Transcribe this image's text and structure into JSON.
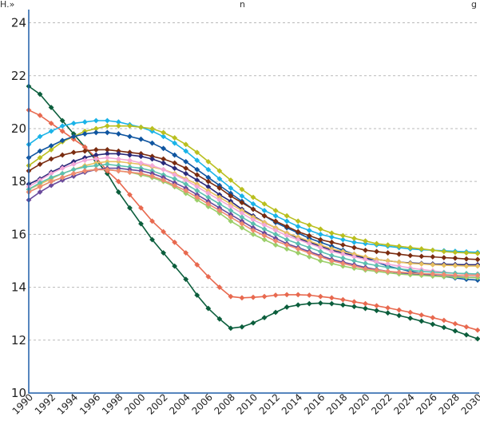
{
  "chart_data": {
    "type": "line",
    "title": "",
    "xlabel": "",
    "ylabel": "",
    "ylim": [
      10,
      24.5
    ],
    "yticks": [
      "10",
      "12",
      "14",
      "16",
      "18",
      "20",
      "22",
      "24"
    ],
    "x": [
      1990,
      1991,
      1992,
      1993,
      1994,
      1995,
      1996,
      1997,
      1998,
      1999,
      2000,
      2001,
      2002,
      2003,
      2004,
      2005,
      2006,
      2007,
      2008,
      2009,
      2010,
      2011,
      2012,
      2013,
      2014,
      2015,
      2016,
      2017,
      2018,
      2019,
      2020,
      2021,
      2022,
      2023,
      2024,
      2025,
      2026,
      2027,
      2028,
      2029,
      2030
    ],
    "xticks": [
      "1990",
      "1992",
      "1994",
      "1996",
      "1998",
      "2000",
      "2002",
      "2004",
      "2006",
      "2008",
      "2010",
      "2012",
      "2014",
      "2016",
      "2018",
      "2020",
      "2022",
      "2024",
      "2026",
      "2028",
      "2030"
    ],
    "grid": true,
    "series": [
      {
        "color": "#0b5e3c",
        "values": [
          21.6,
          21.3,
          20.8,
          20.3,
          19.8,
          19.3,
          18.8,
          18.3,
          17.6,
          17.0,
          16.4,
          15.8,
          15.3,
          14.8,
          14.3,
          13.7,
          13.2,
          12.8,
          12.45,
          12.5,
          12.65,
          12.85,
          13.05,
          13.25,
          13.33,
          13.38,
          13.4,
          13.38,
          13.33,
          13.27,
          13.2,
          13.12,
          13.03,
          12.93,
          12.83,
          12.72,
          12.6,
          12.48,
          12.35,
          12.2,
          12.05
        ]
      },
      {
        "color": "#e8694f",
        "values": [
          20.7,
          20.5,
          20.2,
          19.9,
          19.6,
          19.3,
          18.9,
          18.4,
          18.0,
          17.5,
          17.0,
          16.5,
          16.1,
          15.7,
          15.3,
          14.85,
          14.4,
          14.0,
          13.65,
          13.6,
          13.62,
          13.65,
          13.7,
          13.72,
          13.72,
          13.7,
          13.65,
          13.6,
          13.53,
          13.45,
          13.38,
          13.3,
          13.22,
          13.14,
          13.05,
          12.95,
          12.85,
          12.75,
          12.62,
          12.5,
          12.38
        ]
      },
      {
        "color": "#1ab3e8",
        "values": [
          19.4,
          19.7,
          19.9,
          20.1,
          20.2,
          20.25,
          20.3,
          20.3,
          20.25,
          20.15,
          20.05,
          19.9,
          19.7,
          19.45,
          19.15,
          18.8,
          18.45,
          18.1,
          17.75,
          17.45,
          17.15,
          16.9,
          16.7,
          16.5,
          16.3,
          16.15,
          16.0,
          15.9,
          15.8,
          15.7,
          15.65,
          15.6,
          15.55,
          15.5,
          15.45,
          15.42,
          15.4,
          15.38,
          15.36,
          15.34,
          15.32
        ]
      },
      {
        "color": "#b9bf1f",
        "values": [
          18.6,
          18.9,
          19.2,
          19.5,
          19.7,
          19.9,
          20.0,
          20.1,
          20.1,
          20.1,
          20.05,
          20.0,
          19.85,
          19.65,
          19.4,
          19.1,
          18.75,
          18.4,
          18.05,
          17.7,
          17.4,
          17.15,
          16.9,
          16.7,
          16.5,
          16.35,
          16.2,
          16.05,
          15.95,
          15.85,
          15.75,
          15.65,
          15.6,
          15.55,
          15.5,
          15.45,
          15.4,
          15.35,
          15.32,
          15.3,
          15.28
        ]
      },
      {
        "color": "#0f55a0",
        "values": [
          18.9,
          19.15,
          19.35,
          19.55,
          19.7,
          19.8,
          19.85,
          19.85,
          19.8,
          19.7,
          19.6,
          19.45,
          19.25,
          19.0,
          18.75,
          18.45,
          18.15,
          17.85,
          17.55,
          17.25,
          16.95,
          16.7,
          16.45,
          16.25,
          16.05,
          15.85,
          15.7,
          15.55,
          15.4,
          15.25,
          15.1,
          14.95,
          14.8,
          14.7,
          14.6,
          14.52,
          14.45,
          14.4,
          14.35,
          14.3,
          14.27
        ]
      },
      {
        "color": "#7a2c10",
        "values": [
          18.4,
          18.65,
          18.85,
          19.0,
          19.1,
          19.15,
          19.2,
          19.2,
          19.15,
          19.1,
          19.05,
          18.95,
          18.85,
          18.7,
          18.5,
          18.25,
          18.0,
          17.75,
          17.45,
          17.2,
          16.95,
          16.7,
          16.5,
          16.3,
          16.1,
          15.95,
          15.8,
          15.7,
          15.6,
          15.5,
          15.4,
          15.35,
          15.3,
          15.25,
          15.2,
          15.17,
          15.15,
          15.12,
          15.1,
          15.07,
          15.05
        ]
      },
      {
        "color": "#2a2a7a",
        "values": [
          17.9,
          18.1,
          18.35,
          18.55,
          18.75,
          18.9,
          19.0,
          19.05,
          19.05,
          19.0,
          18.95,
          18.85,
          18.7,
          18.5,
          18.3,
          18.05,
          17.8,
          17.5,
          17.25,
          16.95,
          16.7,
          16.45,
          16.25,
          16.05,
          15.85,
          15.7,
          15.55,
          15.4,
          15.3,
          15.2,
          15.1,
          15.05,
          15.0,
          14.95,
          14.92,
          14.9,
          14.88,
          14.87,
          14.86,
          14.85,
          14.85
        ]
      },
      {
        "color": "#e8c060",
        "values": [
          17.7,
          17.9,
          18.1,
          18.3,
          18.45,
          18.6,
          18.7,
          18.75,
          18.75,
          18.7,
          18.65,
          18.55,
          18.45,
          18.3,
          18.1,
          17.9,
          17.65,
          17.4,
          17.15,
          16.9,
          16.65,
          16.45,
          16.25,
          16.05,
          15.9,
          15.75,
          15.6,
          15.45,
          15.35,
          15.25,
          15.15,
          15.05,
          15.0,
          14.95,
          14.9,
          14.88,
          14.85,
          14.83,
          14.82,
          14.8,
          14.8
        ]
      },
      {
        "color": "#f4a8d8",
        "values": [
          17.8,
          18.05,
          18.3,
          18.5,
          18.65,
          18.8,
          18.85,
          18.9,
          18.85,
          18.8,
          18.7,
          18.6,
          18.45,
          18.25,
          18.05,
          17.8,
          17.55,
          17.3,
          17.05,
          16.8,
          16.55,
          16.35,
          16.15,
          15.95,
          15.8,
          15.65,
          15.5,
          15.35,
          15.25,
          15.15,
          15.05,
          14.95,
          14.87,
          14.8,
          14.73,
          14.67,
          14.62,
          14.57,
          14.53,
          14.5,
          14.47
        ]
      },
      {
        "color": "#5cc0b0",
        "values": [
          17.7,
          17.95,
          18.15,
          18.3,
          18.45,
          18.55,
          18.6,
          18.65,
          18.6,
          18.55,
          18.5,
          18.4,
          18.25,
          18.1,
          17.9,
          17.65,
          17.4,
          17.15,
          16.9,
          16.65,
          16.4,
          16.2,
          16.0,
          15.8,
          15.65,
          15.5,
          15.35,
          15.2,
          15.1,
          15.0,
          14.9,
          14.82,
          14.75,
          14.7,
          14.65,
          14.6,
          14.57,
          14.55,
          14.53,
          14.52,
          14.5
        ]
      },
      {
        "color": "#6a4a9c",
        "values": [
          17.3,
          17.6,
          17.85,
          18.05,
          18.2,
          18.35,
          18.45,
          18.5,
          18.5,
          18.45,
          18.4,
          18.3,
          18.15,
          17.95,
          17.75,
          17.5,
          17.25,
          17.0,
          16.75,
          16.5,
          16.25,
          16.05,
          15.85,
          15.65,
          15.5,
          15.35,
          15.2,
          15.05,
          14.95,
          14.85,
          14.75,
          14.67,
          14.6,
          14.55,
          14.5,
          14.47,
          14.45,
          14.42,
          14.4,
          14.38,
          14.37
        ]
      },
      {
        "color": "#9ccf6a",
        "values": [
          17.6,
          17.8,
          18.0,
          18.15,
          18.3,
          18.4,
          18.45,
          18.45,
          18.4,
          18.35,
          18.25,
          18.15,
          18.0,
          17.8,
          17.55,
          17.3,
          17.05,
          16.8,
          16.5,
          16.25,
          16.0,
          15.8,
          15.6,
          15.45,
          15.3,
          15.15,
          15.0,
          14.9,
          14.8,
          14.72,
          14.65,
          14.6,
          14.55,
          14.5,
          14.47,
          14.45,
          14.42,
          14.4,
          14.38,
          14.37,
          14.36
        ]
      },
      {
        "color": "#f08a70",
        "values": [
          17.6,
          17.8,
          18.0,
          18.15,
          18.3,
          18.4,
          18.45,
          18.45,
          18.4,
          18.35,
          18.3,
          18.2,
          18.05,
          17.85,
          17.65,
          17.4,
          17.15,
          16.9,
          16.65,
          16.4,
          16.15,
          15.95,
          15.75,
          15.6,
          15.45,
          15.3,
          15.15,
          15.0,
          14.9,
          14.8,
          14.7,
          14.65,
          14.6,
          14.57,
          14.55,
          14.52,
          14.5,
          14.48,
          14.46,
          14.45,
          14.45
        ]
      }
    ]
  },
  "top_fragment_left": "H.»",
  "top_fragment_mid": "n",
  "top_fragment_right": "g"
}
